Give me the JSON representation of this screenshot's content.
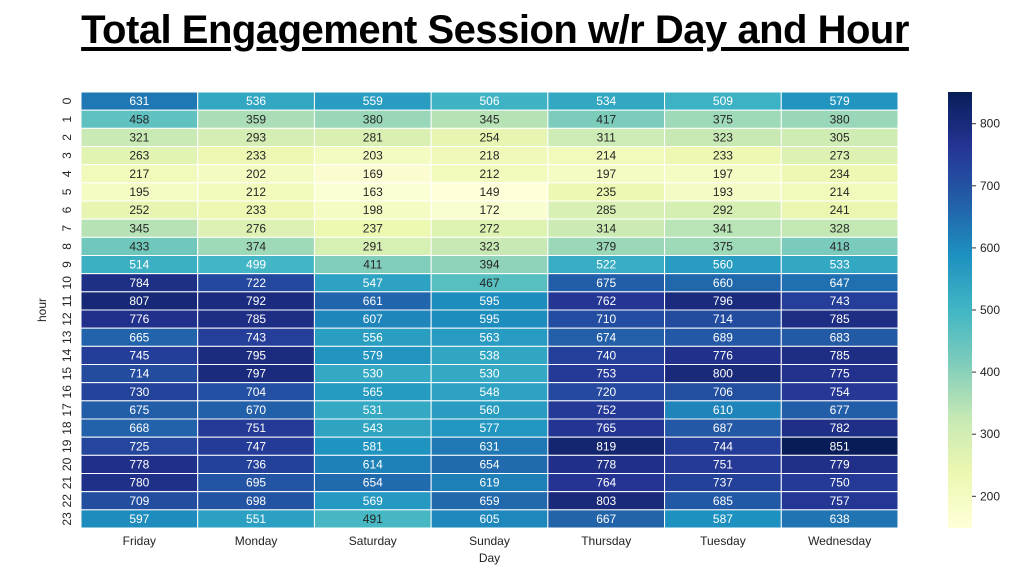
{
  "slide": {
    "title": "Total Engagement Session w/r Day and Hour"
  },
  "chart_data": {
    "type": "heatmap",
    "xlabel": "Day",
    "ylabel": "hour",
    "categories": [
      "Friday",
      "Monday",
      "Saturday",
      "Sunday",
      "Thursday",
      "Tuesday",
      "Wednesday"
    ],
    "rows": [
      "0",
      "1",
      "2",
      "3",
      "4",
      "5",
      "6",
      "7",
      "8",
      "9",
      "10",
      "11",
      "12",
      "13",
      "14",
      "15",
      "16",
      "17",
      "18",
      "19",
      "20",
      "21",
      "22",
      "23"
    ],
    "values": [
      [
        631,
        536,
        559,
        506,
        534,
        509,
        579
      ],
      [
        458,
        359,
        380,
        345,
        417,
        375,
        380
      ],
      [
        321,
        293,
        281,
        254,
        311,
        323,
        305
      ],
      [
        263,
        233,
        203,
        218,
        214,
        233,
        273
      ],
      [
        217,
        202,
        169,
        212,
        197,
        197,
        234
      ],
      [
        195,
        212,
        163,
        149,
        235,
        193,
        214
      ],
      [
        252,
        233,
        198,
        172,
        285,
        292,
        241
      ],
      [
        345,
        276,
        237,
        272,
        314,
        341,
        328
      ],
      [
        433,
        374,
        291,
        323,
        379,
        375,
        418
      ],
      [
        514,
        499,
        411,
        394,
        522,
        560,
        533
      ],
      [
        784,
        722,
        547,
        467,
        675,
        660,
        647
      ],
      [
        807,
        792,
        661,
        595,
        762,
        796,
        743
      ],
      [
        776,
        785,
        607,
        595,
        710,
        714,
        785
      ],
      [
        665,
        743,
        556,
        563,
        674,
        689,
        683
      ],
      [
        745,
        795,
        579,
        538,
        740,
        776,
        785
      ],
      [
        714,
        797,
        530,
        530,
        753,
        800,
        775
      ],
      [
        730,
        704,
        565,
        548,
        720,
        706,
        754
      ],
      [
        675,
        670,
        531,
        560,
        752,
        610,
        677
      ],
      [
        668,
        751,
        543,
        577,
        765,
        687,
        782
      ],
      [
        725,
        747,
        581,
        631,
        819,
        744,
        851
      ],
      [
        778,
        736,
        614,
        654,
        778,
        751,
        779
      ],
      [
        780,
        695,
        654,
        619,
        764,
        737,
        750
      ],
      [
        709,
        698,
        569,
        659,
        803,
        685,
        757
      ],
      [
        597,
        551,
        491,
        605,
        667,
        587,
        638
      ]
    ],
    "colormap": "YlGnBu",
    "vmin": 149,
    "vmax": 851,
    "colorbar_ticks": [
      200,
      300,
      400,
      500,
      600,
      700,
      800
    ],
    "colors": [
      "#ffffd9",
      "#edf8b1",
      "#c7e9b4",
      "#7fcdbb",
      "#41b6c4",
      "#1d91c0",
      "#225ea8",
      "#253494",
      "#081d58"
    ]
  }
}
